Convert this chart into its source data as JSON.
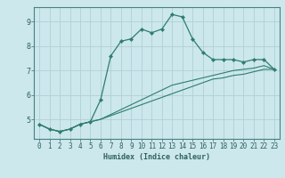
{
  "xlabel": "Humidex (Indice chaleur)",
  "background_color": "#cce8ec",
  "grid_color": "#b0d0d5",
  "line_color": "#2e7d6e",
  "x_values": [
    0,
    1,
    2,
    3,
    4,
    5,
    6,
    7,
    8,
    9,
    10,
    11,
    12,
    13,
    14,
    15,
    16,
    17,
    18,
    19,
    20,
    21,
    22,
    23
  ],
  "line1_y": [
    4.8,
    4.6,
    4.5,
    4.6,
    4.8,
    4.9,
    5.8,
    7.6,
    8.2,
    8.3,
    8.7,
    8.55,
    8.7,
    9.3,
    9.2,
    8.3,
    7.75,
    7.45,
    7.45,
    7.45,
    7.35,
    7.45,
    7.45,
    7.05
  ],
  "line2_y": [
    4.8,
    4.6,
    4.5,
    4.6,
    4.8,
    4.9,
    5.0,
    5.2,
    5.4,
    5.6,
    5.8,
    6.0,
    6.2,
    6.4,
    6.5,
    6.6,
    6.7,
    6.8,
    6.9,
    7.0,
    7.05,
    7.1,
    7.2,
    7.05
  ],
  "line3_y": [
    4.8,
    4.6,
    4.5,
    4.6,
    4.8,
    4.9,
    5.0,
    5.15,
    5.3,
    5.45,
    5.6,
    5.75,
    5.9,
    6.05,
    6.2,
    6.35,
    6.5,
    6.65,
    6.7,
    6.8,
    6.85,
    6.95,
    7.05,
    7.05
  ],
  "xlim": [
    -0.5,
    23.5
  ],
  "ylim": [
    4.2,
    9.6
  ],
  "yticks": [
    5,
    6,
    7,
    8,
    9
  ],
  "xticks": [
    0,
    1,
    2,
    3,
    4,
    5,
    6,
    7,
    8,
    9,
    10,
    11,
    12,
    13,
    14,
    15,
    16,
    17,
    18,
    19,
    20,
    21,
    22,
    23
  ],
  "tick_fontsize": 5.5,
  "xlabel_fontsize": 6.0,
  "tick_color": "#2e6060",
  "spine_color": "#4a8080"
}
